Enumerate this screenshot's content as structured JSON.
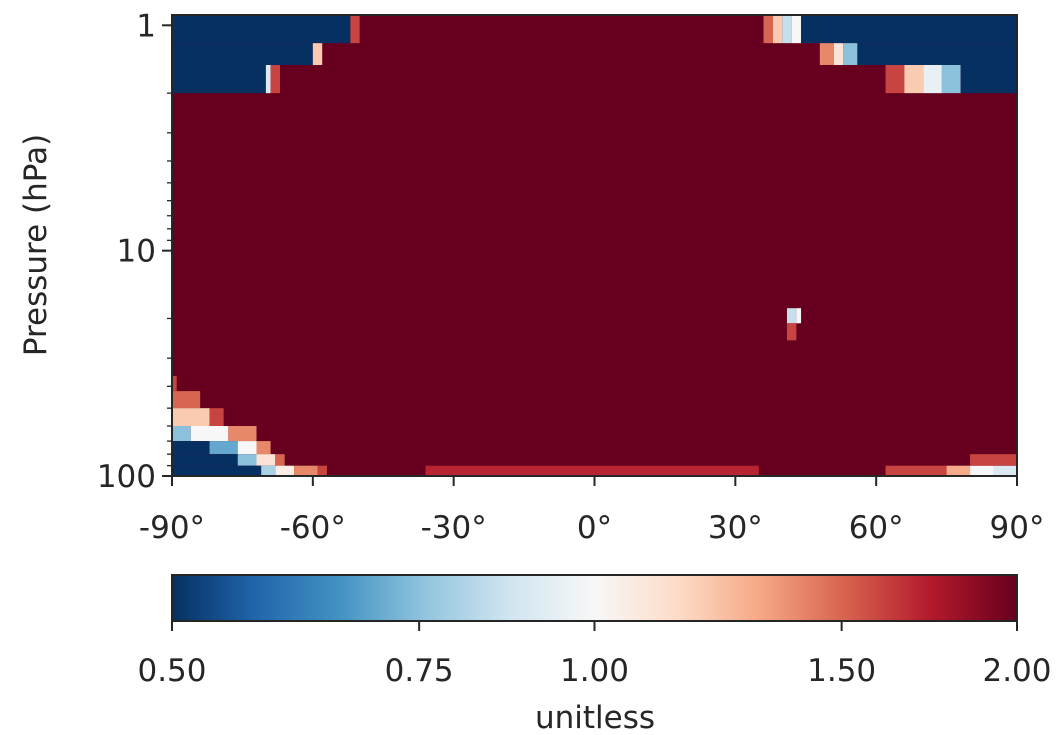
{
  "chart_data": {
    "type": "heatmap",
    "title": "",
    "xlabel": "",
    "ylabel": "Pressure (hPa)",
    "x_range": [
      -90,
      90
    ],
    "y_range": [
      0.9,
      100
    ],
    "y_scale": "log",
    "y_inverted": true,
    "grid": false,
    "x_ticks": [
      {
        "value": -90,
        "label": "-90°"
      },
      {
        "value": -60,
        "label": "-60°"
      },
      {
        "value": -30,
        "label": "-30°"
      },
      {
        "value": 0,
        "label": "0°"
      },
      {
        "value": 30,
        "label": "30°"
      },
      {
        "value": 60,
        "label": "60°"
      },
      {
        "value": 90,
        "label": "90°"
      }
    ],
    "y_ticks": [
      {
        "value": 1,
        "label": "1"
      },
      {
        "value": 10,
        "label": "10"
      },
      {
        "value": 100,
        "label": "100"
      }
    ],
    "background_value": 2.0,
    "cells": [
      {
        "lat": [
          -90,
          -52
        ],
        "p": [
          0.9,
          1.2
        ],
        "value": 0.5
      },
      {
        "lat": [
          -52,
          -50
        ],
        "p": [
          0.9,
          1.2
        ],
        "value": 1.6
      },
      {
        "lat": [
          -50,
          -48
        ],
        "p": [
          0.9,
          1.2
        ],
        "value": 2.0
      },
      {
        "lat": [
          -90,
          -60
        ],
        "p": [
          1.2,
          1.5
        ],
        "value": 0.5
      },
      {
        "lat": [
          -60,
          -58
        ],
        "p": [
          1.2,
          1.5
        ],
        "value": 1.2
      },
      {
        "lat": [
          -90,
          -70
        ],
        "p": [
          1.5,
          2.0
        ],
        "value": 0.5
      },
      {
        "lat": [
          -70,
          -69
        ],
        "p": [
          1.5,
          2.0
        ],
        "value": 0.9
      },
      {
        "lat": [
          -69,
          -67
        ],
        "p": [
          1.5,
          2.0
        ],
        "value": 1.6
      },
      {
        "lat": [
          36,
          38
        ],
        "p": [
          0.9,
          1.2
        ],
        "value": 1.5
      },
      {
        "lat": [
          38,
          40
        ],
        "p": [
          0.9,
          1.2
        ],
        "value": 1.2
      },
      {
        "lat": [
          40,
          42
        ],
        "p": [
          0.9,
          1.2
        ],
        "value": 0.85
      },
      {
        "lat": [
          42,
          44
        ],
        "p": [
          0.9,
          1.2
        ],
        "value": 1.0
      },
      {
        "lat": [
          44,
          90
        ],
        "p": [
          0.9,
          1.2
        ],
        "value": 0.5
      },
      {
        "lat": [
          48,
          51
        ],
        "p": [
          1.2,
          1.5
        ],
        "value": 1.4
      },
      {
        "lat": [
          51,
          53
        ],
        "p": [
          1.2,
          1.5
        ],
        "value": 1.1
      },
      {
        "lat": [
          53,
          56
        ],
        "p": [
          1.2,
          1.5
        ],
        "value": 0.75
      },
      {
        "lat": [
          56,
          90
        ],
        "p": [
          1.2,
          1.5
        ],
        "value": 0.5
      },
      {
        "lat": [
          62,
          66
        ],
        "p": [
          1.5,
          2.0
        ],
        "value": 1.6
      },
      {
        "lat": [
          66,
          70
        ],
        "p": [
          1.5,
          2.0
        ],
        "value": 1.2
      },
      {
        "lat": [
          70,
          74
        ],
        "p": [
          1.5,
          2.0
        ],
        "value": 0.95
      },
      {
        "lat": [
          74,
          78
        ],
        "p": [
          1.5,
          2.0
        ],
        "value": 0.75
      },
      {
        "lat": [
          78,
          90
        ],
        "p": [
          1.5,
          2.0
        ],
        "value": 0.5
      },
      {
        "lat": [
          41,
          43
        ],
        "p": [
          18,
          21
        ],
        "value": 0.85
      },
      {
        "lat": [
          43,
          44
        ],
        "p": [
          18,
          21
        ],
        "value": 1.0
      },
      {
        "lat": [
          41,
          43
        ],
        "p": [
          21,
          25
        ],
        "value": 1.6
      },
      {
        "lat": [
          -90,
          -89
        ],
        "p": [
          36,
          42
        ],
        "value": 1.6
      },
      {
        "lat": [
          -90,
          -84
        ],
        "p": [
          42,
          50
        ],
        "value": 1.5
      },
      {
        "lat": [
          -90,
          -82
        ],
        "p": [
          50,
          60
        ],
        "value": 1.2
      },
      {
        "lat": [
          -82,
          -79
        ],
        "p": [
          50,
          60
        ],
        "value": 1.6
      },
      {
        "lat": [
          -90,
          -86
        ],
        "p": [
          60,
          70
        ],
        "value": 0.75
      },
      {
        "lat": [
          -86,
          -78
        ],
        "p": [
          60,
          70
        ],
        "value": 1.0
      },
      {
        "lat": [
          -78,
          -72
        ],
        "p": [
          60,
          70
        ],
        "value": 1.4
      },
      {
        "lat": [
          -90,
          -82
        ],
        "p": [
          70,
          80
        ],
        "value": 0.5
      },
      {
        "lat": [
          -82,
          -76
        ],
        "p": [
          70,
          80
        ],
        "value": 0.7
      },
      {
        "lat": [
          -76,
          -72
        ],
        "p": [
          70,
          80
        ],
        "value": 1.0
      },
      {
        "lat": [
          -72,
          -69
        ],
        "p": [
          70,
          80
        ],
        "value": 1.4
      },
      {
        "lat": [
          -90,
          -76
        ],
        "p": [
          80,
          90
        ],
        "value": 0.5
      },
      {
        "lat": [
          -76,
          -72
        ],
        "p": [
          80,
          90
        ],
        "value": 0.75
      },
      {
        "lat": [
          -72,
          -68
        ],
        "p": [
          80,
          90
        ],
        "value": 1.1
      },
      {
        "lat": [
          -68,
          -66
        ],
        "p": [
          80,
          90
        ],
        "value": 1.5
      },
      {
        "lat": [
          -90,
          -71
        ],
        "p": [
          90,
          100
        ],
        "value": 0.5
      },
      {
        "lat": [
          -71,
          -68
        ],
        "p": [
          90,
          100
        ],
        "value": 0.8
      },
      {
        "lat": [
          -68,
          -64
        ],
        "p": [
          90,
          100
        ],
        "value": 1.05
      },
      {
        "lat": [
          -64,
          -59
        ],
        "p": [
          90,
          100
        ],
        "value": 1.4
      },
      {
        "lat": [
          -59,
          -57
        ],
        "p": [
          90,
          100
        ],
        "value": 1.6
      },
      {
        "lat": [
          -36,
          35
        ],
        "p": [
          90,
          100
        ],
        "value": 1.7
      },
      {
        "lat": [
          62,
          75
        ],
        "p": [
          90,
          100
        ],
        "value": 1.6
      },
      {
        "lat": [
          75,
          80
        ],
        "p": [
          90,
          100
        ],
        "value": 1.3
      },
      {
        "lat": [
          80,
          85
        ],
        "p": [
          90,
          100
        ],
        "value": 1.0
      },
      {
        "lat": [
          85,
          90
        ],
        "p": [
          90,
          100
        ],
        "value": 0.9
      },
      {
        "lat": [
          80,
          90
        ],
        "p": [
          80,
          90
        ],
        "value": 1.6
      }
    ],
    "colorbar": {
      "colormap": "RdBu_r",
      "label": "unitless",
      "ticks": [
        0.5,
        0.75,
        1.0,
        1.5,
        2.0
      ],
      "tick_labels": [
        "0.50",
        "0.75",
        "1.00",
        "1.50",
        "2.00"
      ],
      "range": [
        0.5,
        2.0
      ]
    }
  }
}
